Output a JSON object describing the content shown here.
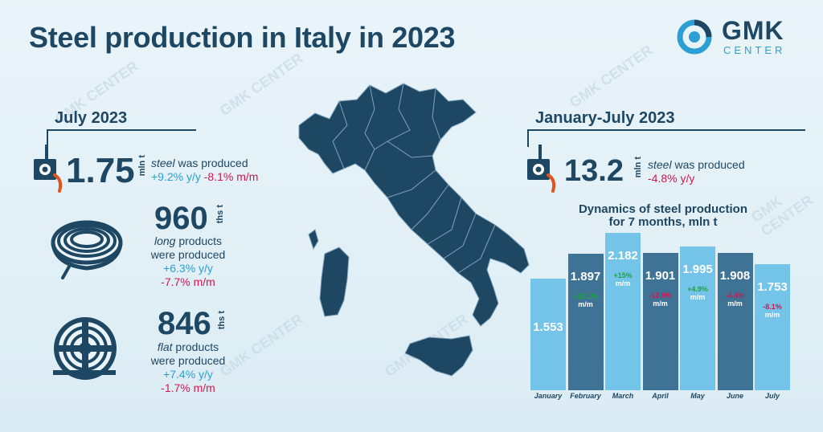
{
  "title": "Steel production in Italy in 2023",
  "logo": {
    "name": "GMK",
    "sub": "CENTER"
  },
  "july": {
    "heading": "July 2023",
    "steel": {
      "value": "1.75",
      "unit": "mln t",
      "label_italic": "steel",
      "label_rest": " was produced",
      "yy": "+9.2% y/y",
      "mm": "-8.1% m/m"
    },
    "long": {
      "value": "960",
      "unit": "ths t",
      "label_italic": "long",
      "label_rest": " products",
      "line2": "were produced",
      "yy": "+6.3% y/y",
      "mm": "-7.7% m/m"
    },
    "flat": {
      "value": "846",
      "unit": "ths t",
      "label_italic": "flat",
      "label_rest": " products",
      "line2": "were produced",
      "yy": "+7.4% y/y",
      "mm": "-1.7% m/m"
    }
  },
  "jan_jul": {
    "heading": "January-July 2023",
    "steel": {
      "value": "13.2",
      "unit": "mln t",
      "label_italic": "steel",
      "label_rest": " was produced",
      "yy": "-4.8% y/y"
    }
  },
  "colors": {
    "navy": "#1e4763",
    "light_bar": "#74c4ea",
    "dark_bar": "#3e7396",
    "blue": "#2b9fd4",
    "red": "#d0184f",
    "green": "#18a833"
  },
  "icons": [
    "ladle-icon",
    "coil-icon",
    "flat-coil-icon",
    "italy-map",
    "gmk-logo-icon"
  ],
  "watermark": "GMK CENTER",
  "chart_data": {
    "type": "bar",
    "title": "Dynamics of steel production for 7 months, mln t",
    "title_line1": "Dynamics of steel production",
    "title_line2": "for 7 months, mln t",
    "categories": [
      "January",
      "February",
      "March",
      "April",
      "May",
      "June",
      "July"
    ],
    "values": [
      1.553,
      1.897,
      2.182,
      1.901,
      1.995,
      1.908,
      1.753
    ],
    "value_labels": [
      "1.553",
      "1.897",
      "2.182",
      "1.901",
      "1.995",
      "1.908",
      "1.753"
    ],
    "changes": [
      "",
      "+22.1%",
      "+15%",
      "-12.9%",
      "+4.9%",
      "-4.4%",
      "-8.1%"
    ],
    "change_unit": "m/m",
    "ylim": [
      0,
      2.182
    ],
    "grid": false
  }
}
